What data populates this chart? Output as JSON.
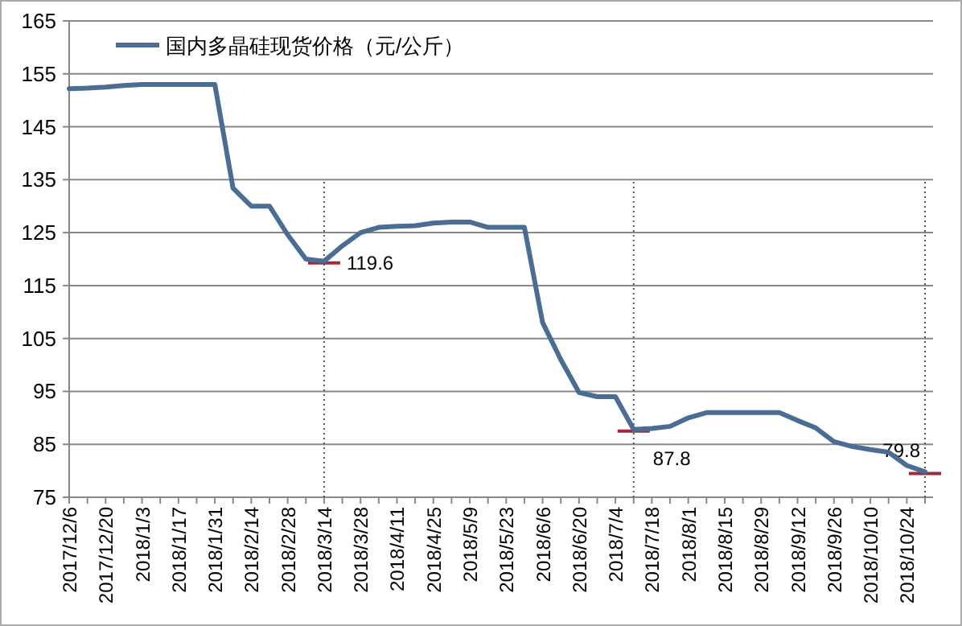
{
  "chart_data": {
    "type": "line",
    "categories": [
      "2017/12/6",
      null,
      "2017/12/20",
      null,
      "2018/1/3",
      null,
      "2018/1/17",
      null,
      "2018/1/31",
      null,
      "2018/2/14",
      null,
      "2018/2/28",
      null,
      "2018/3/14",
      null,
      "2018/3/28",
      null,
      "2018/4/11",
      null,
      "2018/4/25",
      null,
      "2018/5/9",
      null,
      "2018/5/23",
      null,
      "2018/6/6",
      null,
      "2018/6/20",
      null,
      "2018/7/4",
      null,
      "2018/7/18",
      null,
      "2018/8/1",
      null,
      "2018/8/15",
      null,
      "2018/8/29",
      null,
      "2018/9/12",
      null,
      "2018/9/26",
      null,
      "2018/10/10",
      null,
      "2018/10/24",
      null
    ],
    "series": [
      {
        "name": "国内多晶硅现货价格（元/公斤）",
        "color": "#4a6d93",
        "values": [
          152.2,
          152.3,
          152.5,
          152.8,
          153,
          153,
          153,
          153,
          153,
          133.4,
          130,
          130,
          124.6,
          120,
          119.6,
          122.5,
          125,
          126,
          126.2,
          126.3,
          126.8,
          127,
          127,
          126,
          126,
          126,
          108,
          101,
          94.8,
          94,
          94,
          87.8,
          88,
          88.4,
          90,
          91,
          91,
          91,
          91,
          91,
          89.5,
          88.1,
          85.5,
          84.6,
          84,
          83.5,
          81,
          79.8
        ]
      }
    ],
    "ylim": [
      75,
      165
    ],
    "yticks": [
      75,
      85,
      95,
      105,
      115,
      125,
      135,
      145,
      155,
      165
    ],
    "grid": "y",
    "legend": "top left",
    "marker": "none",
    "line_style": "solid",
    "annotations": [
      {
        "text": "119.6",
        "x": "2018/3/14",
        "y": 119.6
      },
      {
        "text": "87.8",
        "y": 87.8
      },
      {
        "text": "79.8",
        "y": 79.8
      }
    ]
  }
}
